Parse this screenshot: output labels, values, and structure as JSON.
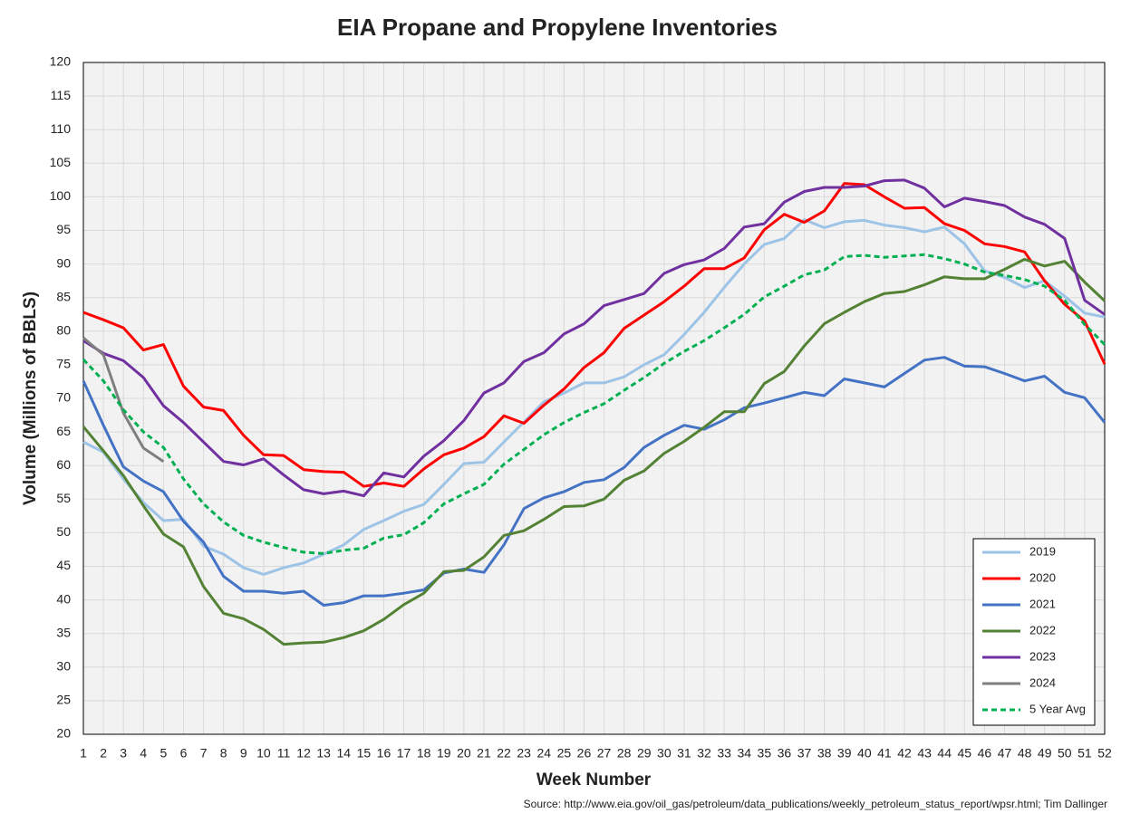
{
  "chart_data": {
    "type": "line",
    "title": "EIA Propane and Propylene Inventories",
    "xlabel": "Week Number",
    "ylabel": "Volume (Millions of BBLS)",
    "source": "Source: http://www.eia.gov/oil_gas/petroleum/data_publications/weekly_petroleum_status_report/wpsr.html; Tim Dallinger",
    "x": [
      1,
      2,
      3,
      4,
      5,
      6,
      7,
      8,
      9,
      10,
      11,
      12,
      13,
      14,
      15,
      16,
      17,
      18,
      19,
      20,
      21,
      22,
      23,
      24,
      25,
      26,
      27,
      28,
      29,
      30,
      31,
      32,
      33,
      34,
      35,
      36,
      37,
      38,
      39,
      40,
      41,
      42,
      43,
      44,
      45,
      46,
      47,
      48,
      49,
      50,
      51,
      52
    ],
    "xlim": [
      1,
      52
    ],
    "xticks": [
      1,
      2,
      3,
      4,
      5,
      6,
      7,
      8,
      9,
      10,
      11,
      12,
      13,
      14,
      15,
      16,
      17,
      18,
      19,
      20,
      21,
      22,
      23,
      24,
      25,
      26,
      27,
      28,
      29,
      30,
      31,
      32,
      33,
      34,
      35,
      36,
      37,
      38,
      39,
      40,
      41,
      42,
      43,
      44,
      45,
      46,
      47,
      48,
      49,
      50,
      51,
      52
    ],
    "ylim": [
      20,
      120
    ],
    "yticks": [
      20,
      25,
      30,
      35,
      40,
      45,
      50,
      55,
      60,
      65,
      70,
      75,
      80,
      85,
      90,
      95,
      100,
      105,
      110,
      115,
      120
    ],
    "grid": true,
    "legend": "lower right",
    "series": [
      {
        "name": "2019",
        "color": "#9dc3e6",
        "values": [
          63.5,
          62,
          58,
          54.5,
          51.8,
          52,
          48,
          46.8,
          44.8,
          43.8,
          44.8,
          45.5,
          46.8,
          48.2,
          50.5,
          51.8,
          53.2,
          54.2,
          57.2,
          60.3,
          60.5,
          63.5,
          66.5,
          69.5,
          70.8,
          72.3,
          72.3,
          73.2,
          75,
          76.5,
          79.5,
          82.8,
          86.5,
          90,
          92.9,
          93.8,
          96.6,
          95.4,
          96.3,
          96.5,
          95.8,
          95.4,
          94.8,
          95.5,
          93,
          89,
          88,
          86.5,
          87.5,
          85.2,
          82.7,
          82.1
        ]
      },
      {
        "name": "2020",
        "color": "#ff0000",
        "values": [
          82.8,
          81.7,
          80.5,
          77.2,
          78,
          71.8,
          68.7,
          68.2,
          64.5,
          61.6,
          61.5,
          59.4,
          59.1,
          59,
          56.9,
          57.4,
          56.9,
          59.5,
          61.6,
          62.6,
          64.3,
          67.4,
          66.3,
          69,
          71.4,
          74.6,
          76.8,
          80.4,
          82.4,
          84.4,
          86.7,
          89.3,
          89.3,
          90.9,
          95.1,
          97.4,
          96.2,
          97.9,
          102,
          101.8,
          100,
          98.3,
          98.4,
          96,
          95,
          93,
          92.6,
          91.8,
          87.5,
          84,
          81.5,
          75.1
        ]
      },
      {
        "name": "2021",
        "color": "#4472c4",
        "values": [
          72.6,
          66,
          59.8,
          57.7,
          56.1,
          51.7,
          48.6,
          43.5,
          41.3,
          41.3,
          41,
          41.3,
          39.2,
          39.6,
          40.6,
          40.6,
          41,
          41.5,
          44,
          44.6,
          44.1,
          48.2,
          53.6,
          55.2,
          56.1,
          57.5,
          57.9,
          59.7,
          62.7,
          64.5,
          66,
          65.4,
          66.8,
          68.6,
          69.3,
          70.1,
          70.9,
          70.4,
          72.9,
          72.3,
          71.7,
          73.7,
          75.7,
          76.1,
          74.8,
          74.7,
          73.7,
          72.6,
          73.3,
          70.9,
          70.1,
          66.4
        ]
      },
      {
        "name": "2022",
        "color": "#548235",
        "values": [
          65.8,
          62.2,
          58.5,
          54,
          49.8,
          47.9,
          42,
          38,
          37.2,
          35.6,
          33.4,
          33.6,
          33.7,
          34.4,
          35.4,
          37.1,
          39.3,
          41,
          44.2,
          44.4,
          46.4,
          49.6,
          50.3,
          52,
          53.9,
          54,
          55,
          57.8,
          59.2,
          61.8,
          63.6,
          65.7,
          68,
          68,
          72.2,
          74,
          77.8,
          81.1,
          82.8,
          84.4,
          85.6,
          85.9,
          86.9,
          88.1,
          87.8,
          87.8,
          89.2,
          90.7,
          89.7,
          90.4,
          87.3,
          84.5
        ]
      },
      {
        "name": "2023",
        "color": "#7030a0",
        "values": [
          78.6,
          76.7,
          75.6,
          73.1,
          68.9,
          66.4,
          63.5,
          60.6,
          60.1,
          61,
          58.6,
          56.4,
          55.8,
          56.2,
          55.5,
          58.9,
          58.3,
          61.4,
          63.7,
          66.7,
          70.8,
          72.3,
          75.5,
          76.8,
          79.6,
          81.1,
          83.8,
          84.7,
          85.6,
          88.6,
          89.9,
          90.6,
          92.3,
          95.5,
          96,
          99.2,
          100.8,
          101.4,
          101.4,
          101.6,
          102.4,
          102.5,
          101.3,
          98.5,
          99.8,
          99.3,
          98.7,
          97,
          95.9,
          93.8,
          84.6,
          82.5
        ]
      },
      {
        "name": "2024",
        "color": "#7f7f7f",
        "values": [
          79,
          76.5,
          67.8,
          62.6,
          60.6,
          null,
          null,
          null,
          null,
          null,
          null,
          null,
          null,
          null,
          null,
          null,
          null,
          null,
          null,
          null,
          null,
          null,
          null,
          null,
          null,
          null,
          null,
          null,
          null,
          null,
          null,
          null,
          null,
          null,
          null,
          null,
          null,
          null,
          null,
          null,
          null,
          null,
          null,
          null,
          null,
          null,
          null,
          null,
          null,
          null,
          null,
          null
        ]
      },
      {
        "name": "5 Year Avg",
        "color": "#00b050",
        "dashed": true,
        "values": [
          75.8,
          72.6,
          68.3,
          65,
          62.7,
          58,
          54.3,
          51.6,
          49.6,
          48.6,
          47.8,
          47.1,
          46.9,
          47.4,
          47.7,
          49.2,
          49.7,
          51.5,
          54.3,
          55.8,
          57.2,
          60.2,
          62.4,
          64.6,
          66.4,
          67.9,
          69.2,
          71.2,
          73.1,
          75.2,
          77,
          78.6,
          80.5,
          82.5,
          85.1,
          86.7,
          88.4,
          89.1,
          91.1,
          91.3,
          91,
          91.2,
          91.4,
          90.8,
          90,
          88.8,
          88.3,
          87.7,
          86.7,
          84.6,
          81,
          78
        ]
      }
    ]
  }
}
